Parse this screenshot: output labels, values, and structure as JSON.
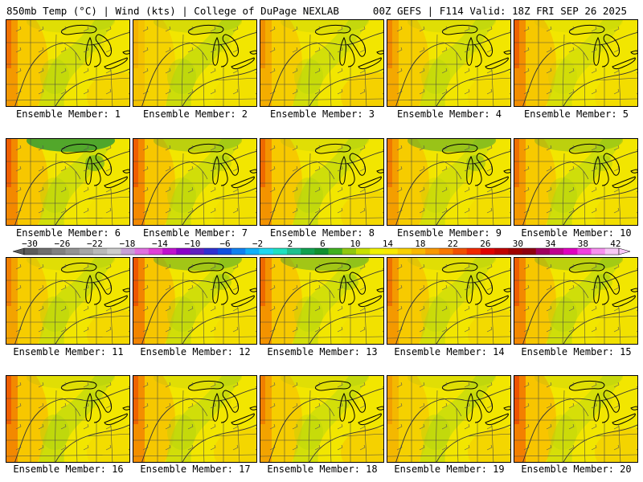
{
  "header": {
    "left_title": "850mb Temp (°C) | Wind (kts) | College of DuPage NEXLAB",
    "right_title": "00Z GEFS | F114 Valid: 18Z FRI SEP 26 2025"
  },
  "members": [
    {
      "label": "Ensemble Member: 1",
      "warm_west": 0.55,
      "cool_center": 0.45,
      "cool_north": 0.1,
      "warm_east": 0.35
    },
    {
      "label": "Ensemble Member: 2",
      "warm_west": 0.15,
      "cool_center": 0.55,
      "cool_north": 0.15,
      "warm_east": 0.1
    },
    {
      "label": "Ensemble Member: 3",
      "warm_west": 0.35,
      "cool_center": 0.4,
      "cool_north": 0.1,
      "warm_east": 0.45
    },
    {
      "label": "Ensemble Member: 4",
      "warm_west": 0.4,
      "cool_center": 0.4,
      "cool_north": 0.1,
      "warm_east": 0.2
    },
    {
      "label": "Ensemble Member: 5",
      "warm_west": 0.65,
      "cool_center": 0.2,
      "cool_north": 0.05,
      "warm_east": 0.2
    },
    {
      "label": "Ensemble Member: 6",
      "warm_west": 0.7,
      "cool_center": 0.45,
      "cool_north": 0.9,
      "warm_east": 0.1
    },
    {
      "label": "Ensemble Member: 7",
      "warm_west": 0.7,
      "cool_center": 0.45,
      "cool_north": 0.3,
      "warm_east": 0.1
    },
    {
      "label": "Ensemble Member: 8",
      "warm_west": 0.6,
      "cool_center": 0.5,
      "cool_north": 0.1,
      "warm_east": 0.3
    },
    {
      "label": "Ensemble Member: 9",
      "warm_west": 0.5,
      "cool_center": 0.3,
      "cool_north": 0.5,
      "warm_east": 0.15
    },
    {
      "label": "Ensemble Member: 10",
      "warm_west": 0.55,
      "cool_center": 0.5,
      "cool_north": 0.3,
      "warm_east": 0.15
    },
    {
      "label": "Ensemble Member: 11",
      "warm_west": 0.45,
      "cool_center": 0.45,
      "cool_north": 0.1,
      "warm_east": 0.3
    },
    {
      "label": "Ensemble Member: 12",
      "warm_west": 0.75,
      "cool_center": 0.45,
      "cool_north": 0.45,
      "warm_east": 0.15
    },
    {
      "label": "Ensemble Member: 13",
      "warm_west": 0.6,
      "cool_center": 0.4,
      "cool_north": 0.45,
      "warm_east": 0.1
    },
    {
      "label": "Ensemble Member: 14",
      "warm_west": 0.55,
      "cool_center": 0.35,
      "cool_north": 0.1,
      "warm_east": 0.25
    },
    {
      "label": "Ensemble Member: 15",
      "warm_west": 0.7,
      "cool_center": 0.5,
      "cool_north": 0.3,
      "warm_east": 0.1
    },
    {
      "label": "Ensemble Member: 16",
      "warm_west": 0.7,
      "cool_center": 0.55,
      "cool_north": 0.1,
      "warm_east": 0.2
    },
    {
      "label": "Ensemble Member: 17",
      "warm_west": 0.65,
      "cool_center": 0.45,
      "cool_north": 0.1,
      "warm_east": 0.35
    },
    {
      "label": "Ensemble Member: 18",
      "warm_west": 0.45,
      "cool_center": 0.4,
      "cool_north": 0.1,
      "warm_east": 0.45
    },
    {
      "label": "Ensemble Member: 19",
      "warm_west": 0.25,
      "cool_center": 0.5,
      "cool_north": 0.1,
      "warm_east": 0.35
    },
    {
      "label": "Ensemble Member: 20",
      "warm_west": 0.8,
      "cool_center": 0.3,
      "cool_north": 0.1,
      "warm_east": 0.4
    }
  ],
  "colorbar": {
    "labels": [
      "−30",
      "−26",
      "−22",
      "−18",
      "−14",
      "−10",
      "−6",
      "−2",
      "2",
      "6",
      "10",
      "14",
      "18",
      "22",
      "26",
      "30",
      "34",
      "38",
      "42"
    ],
    "colors": [
      "#5c5c5c",
      "#6e6e6e",
      "#808080",
      "#939393",
      "#a6a6a6",
      "#b9b9b9",
      "#cdcdcd",
      "#c8a0d8",
      "#e070e0",
      "#e040d8",
      "#c010d0",
      "#8a00c8",
      "#6020c0",
      "#3030d0",
      "#1050e0",
      "#1080f0",
      "#10b0f8",
      "#20d8f0",
      "#20e0c0",
      "#20c090",
      "#10a050",
      "#109030",
      "#40b020",
      "#90c810",
      "#c8e000",
      "#f0f000",
      "#f8e800",
      "#f8d000",
      "#f8b800",
      "#f89800",
      "#f87800",
      "#f05000",
      "#f02800",
      "#e00000",
      "#c00000",
      "#a00000",
      "#900010",
      "#a00060",
      "#c00090",
      "#e000c0",
      "#f040e0",
      "#f890f0",
      "#f8c8f8"
    ]
  }
}
